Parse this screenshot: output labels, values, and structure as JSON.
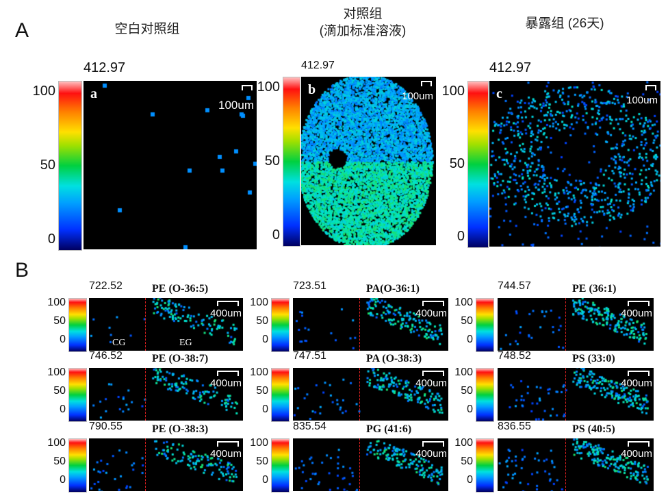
{
  "panel_a": {
    "letter": "A",
    "colorbar_ticks": [
      "100",
      "50",
      "0"
    ],
    "scale_label": "100um",
    "images": [
      {
        "title": "空白对照组",
        "mz": "412.97",
        "sublabel": "a"
      },
      {
        "title": "对照组\n(滴加标准溶液)",
        "title_line1": "对照组",
        "title_line2": "(滴加标准溶液)",
        "mz": "412.97",
        "sublabel": "b"
      },
      {
        "title": "暴露组 (26天)",
        "mz": "412.97",
        "sublabel": "c"
      }
    ]
  },
  "panel_b": {
    "letter": "B",
    "colorbar_ticks": [
      "100",
      "50",
      "0"
    ],
    "scale_label": "400um",
    "region_labels": {
      "left": "CG",
      "right": "EG"
    },
    "images": [
      {
        "mz": "722.52",
        "lipid": "PE (O-36:5)"
      },
      {
        "mz": "723.51",
        "lipid": "PA(O-36:1)"
      },
      {
        "mz": "744.57",
        "lipid": "PE (36:1)"
      },
      {
        "mz": "746.52",
        "lipid": "PE (O-38:7)"
      },
      {
        "mz": "747.51",
        "lipid": "PA (O-38:3)"
      },
      {
        "mz": "748.52",
        "lipid": "PS (33:0)"
      },
      {
        "mz": "790.55",
        "lipid": "PE (O-38:3)"
      },
      {
        "mz": "835.54",
        "lipid": "PG (41:6)"
      },
      {
        "mz": "836.55",
        "lipid": "PS (40:5)"
      }
    ]
  },
  "colors": {
    "divider": "#e02020",
    "background": "#000000"
  }
}
